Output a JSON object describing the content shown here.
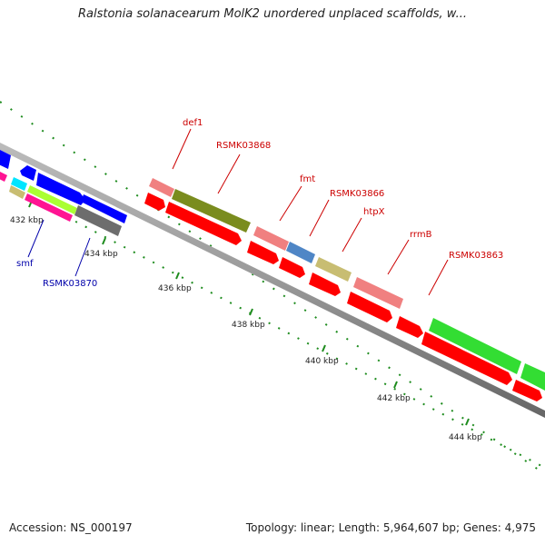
{
  "title": "Ralstonia solanacearum MolK2 unordered unplaced scaffolds, w...",
  "footer": {
    "accession": "Accession: NS_000197",
    "topology": "Topology: linear; Length: 5,964,607 bp; Genes: 4,975"
  },
  "ruler_labels": [
    "432 kbp",
    "434 kbp",
    "436 kbp",
    "438 kbp",
    "440 kbp",
    "442 kbp",
    "444 kbp"
  ],
  "gene_labels": [
    {
      "text": "def1",
      "color": "#cc0000"
    },
    {
      "text": "RSMK03868",
      "color": "#cc0000"
    },
    {
      "text": "fmt",
      "color": "#cc0000"
    },
    {
      "text": "RSMK03866",
      "color": "#cc0000"
    },
    {
      "text": "htpX",
      "color": "#cc0000"
    },
    {
      "text": "rrmB",
      "color": "#cc0000"
    },
    {
      "text": "RSMK03863",
      "color": "#cc0000"
    },
    {
      "text": "smf",
      "color": "#0000aa"
    },
    {
      "text": "RSMK03870",
      "color": "#0000aa"
    }
  ],
  "colors": {
    "red": "#ff0000",
    "blue": "#0000ff",
    "olive": "#7a8c1e",
    "salmon": "#f08080",
    "steel": "#4f86c6",
    "khaki": "#c8bd72",
    "green": "#33dd33",
    "gray": "#6d6d6d",
    "magenta": "#ff1493",
    "cyan": "#00e5ff",
    "lime": "#aaff33",
    "tick": "#1e8c1e",
    "axis": "#888888"
  }
}
